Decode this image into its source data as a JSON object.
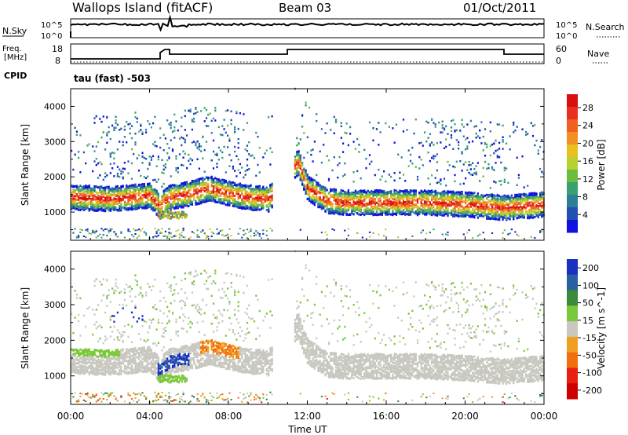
{
  "header": {
    "site": "Wallops Island (fitACF)",
    "beam": "Beam 03",
    "date": "01/Oct/2011"
  },
  "strip_sky": {
    "left_label": "N.Sky",
    "right_label": "N.Search",
    "tick_top": "10^5",
    "tick_bottom": "10^0"
  },
  "strip_freq": {
    "left_label_1": "Freq.",
    "left_label_2": "[MHz]",
    "right_label": "Nave",
    "left_tick_top": "18",
    "left_tick_bottom": "8",
    "right_tick_top": "60",
    "right_tick_bottom": "0"
  },
  "strip_cpid": {
    "label": "CPID",
    "text": "tau (fast) -503"
  },
  "chart_data": [
    {
      "type": "heatmap",
      "panel": "power",
      "ylabel": "Slant Range [km]",
      "yticks": [
        "1000",
        "2000",
        "3000",
        "4000"
      ],
      "ylim": [
        200,
        4500
      ],
      "colorbar": {
        "label": "Power [dB]",
        "ticks": [
          "4",
          "8",
          "12",
          "16",
          "20",
          "24",
          "28"
        ],
        "range": [
          0,
          31
        ],
        "colors": [
          "#1010e0",
          "#2050b0",
          "#2e7e9a",
          "#3aa070",
          "#6cbc3e",
          "#b8d030",
          "#e8c020",
          "#f09020",
          "#f06020",
          "#e83020",
          "#d81010"
        ]
      },
      "echo_band_km": [
        [
          0,
          1450
        ],
        [
          2,
          1400
        ],
        [
          4,
          1500
        ],
        [
          4.5,
          1200
        ],
        [
          5,
          1450
        ],
        [
          6,
          1550
        ],
        [
          7,
          1700
        ],
        [
          8,
          1550
        ],
        [
          9,
          1450
        ],
        [
          10,
          1400
        ],
        [
          11.5,
          2450
        ],
        [
          12,
          1700
        ],
        [
          13,
          1350
        ],
        [
          14,
          1300
        ],
        [
          16,
          1300
        ],
        [
          18,
          1300
        ],
        [
          20,
          1250
        ],
        [
          22,
          1150
        ],
        [
          24,
          1250
        ]
      ]
    },
    {
      "type": "heatmap",
      "panel": "velocity",
      "ylabel": "Slant Range [km]",
      "yticks": [
        "1000",
        "2000",
        "3000",
        "4000"
      ],
      "ylim": [
        200,
        4500
      ],
      "colorbar": {
        "label": "Velocity [m s^-1]",
        "ticks": [
          "200",
          "100",
          "50",
          "15",
          "-15",
          "-50",
          "-100",
          "-200"
        ],
        "range": [
          -250,
          250
        ],
        "colors": [
          "#1a30c0",
          "#2a60a0",
          "#3a8a3a",
          "#7ac83a",
          "#c8c8c0",
          "#f0a020",
          "#f07010",
          "#e82010",
          "#d00000"
        ]
      },
      "xlabel": "Time UT",
      "xticks": [
        "00:00",
        "04:00",
        "08:00",
        "12:00",
        "16:00",
        "20:00",
        "00:00"
      ],
      "xlim": [
        0,
        24
      ]
    }
  ]
}
